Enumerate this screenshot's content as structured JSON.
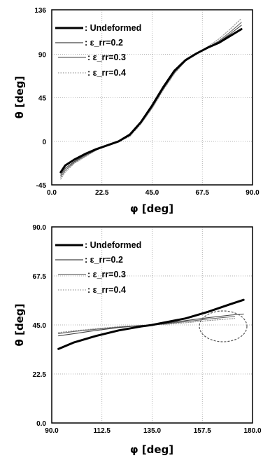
{
  "chart_data": [
    {
      "type": "line",
      "title": "",
      "xlabel": "φ [deg]",
      "ylabel": "θ [deg]",
      "xlim": [
        0,
        90
      ],
      "ylim": [
        -45,
        136
      ],
      "xticks": [
        "0.0",
        "22.5",
        "45.0",
        "67.5",
        "90.0"
      ],
      "xtick_values": [
        0,
        22.5,
        45,
        67.5,
        90
      ],
      "yticks": [
        "-45",
        "0",
        "45",
        "90",
        "136"
      ],
      "ytick_values": [
        -45,
        0,
        45,
        90,
        136
      ],
      "grid": true,
      "legend_position": "top-left",
      "series": [
        {
          "name": "Undeformed",
          "label_prefix": ": ",
          "style": "thick-solid",
          "color": "#000000",
          "x": [
            4,
            6,
            10,
            15,
            20,
            25,
            30,
            35,
            40,
            45,
            50,
            55,
            60,
            65,
            70,
            75,
            80,
            85
          ],
          "y": [
            -32,
            -25,
            -19,
            -13,
            -8,
            -4,
            0,
            7,
            20,
            37,
            56,
            73,
            84,
            91,
            97,
            102,
            109,
            116
          ]
        },
        {
          "name": "ε_rr=0.2",
          "label_prefix": ": ",
          "style": "thin-solid",
          "color": "#444444",
          "x": [
            4,
            6,
            10,
            15,
            20,
            25,
            30,
            35,
            40,
            45,
            50,
            55,
            60,
            65,
            70,
            75,
            80,
            85
          ],
          "y": [
            -35,
            -28,
            -21,
            -14,
            -8,
            -4,
            0,
            6,
            19,
            36,
            55,
            72,
            84,
            91,
            97,
            103,
            111,
            120
          ]
        },
        {
          "name": "ε_rr=0.3",
          "label_prefix": ": ",
          "style": "dark-gray-solid",
          "color": "#666666",
          "x": [
            4,
            6,
            10,
            15,
            20,
            25,
            30,
            35,
            40,
            45,
            50,
            55,
            60,
            65,
            70,
            75,
            80,
            85
          ],
          "y": [
            -37,
            -30,
            -22,
            -15,
            -9,
            -4,
            0,
            6,
            19,
            35,
            54,
            71,
            83,
            91,
            97,
            104,
            113,
            123
          ]
        },
        {
          "name": "ε_rr=0.4",
          "label_prefix": ": ",
          "style": "light-gray-dotted",
          "color": "#999999",
          "x": [
            4,
            6,
            10,
            15,
            20,
            25,
            30,
            35,
            40,
            45,
            50,
            55,
            60,
            65,
            70,
            75,
            80,
            85
          ],
          "y": [
            -39,
            -32,
            -23,
            -16,
            -9,
            -4,
            0,
            5,
            18,
            34,
            53,
            70,
            83,
            91,
            98,
            106,
            116,
            127
          ]
        }
      ]
    },
    {
      "type": "line",
      "title": "",
      "xlabel": "φ [deg]",
      "ylabel": "θ [deg]",
      "xlim": [
        90,
        180
      ],
      "ylim": [
        0,
        90
      ],
      "xticks": [
        "90.0",
        "112.5",
        "135.0",
        "157.5",
        "180.0"
      ],
      "xtick_values": [
        90,
        112.5,
        135,
        157.5,
        180
      ],
      "yticks": [
        "0.0",
        "22.5",
        "45.0",
        "67.5",
        "90.0"
      ],
      "ytick_values": [
        0,
        22.5,
        45,
        67.5,
        90
      ],
      "grid": true,
      "legend_position": "top-left",
      "annotation": "dashed ellipse around the curve ends near x 163–180",
      "series": [
        {
          "name": "Undeformed",
          "label_prefix": ": ",
          "style": "thick-solid",
          "color": "#000000",
          "x": [
            93,
            100,
            110,
            120,
            130,
            135,
            140,
            150,
            160,
            170,
            176
          ],
          "y": [
            34,
            37,
            40,
            42.5,
            44.3,
            45,
            46,
            48,
            51,
            54.5,
            56.5
          ]
        },
        {
          "name": "ε_rr=0.2",
          "label_prefix": ": ",
          "style": "thin-solid",
          "color": "#444444",
          "x": [
            93,
            100,
            110,
            120,
            130,
            135,
            140,
            150,
            160,
            170,
            176
          ],
          "y": [
            40,
            41,
            42.5,
            43.8,
            44.7,
            45,
            45.6,
            47,
            48.3,
            49.5,
            50
          ]
        },
        {
          "name": "ε_rr=0.3",
          "label_prefix": ": ",
          "style": "dark-gray-solid",
          "color": "#666666",
          "x": [
            93,
            100,
            110,
            120,
            130,
            135,
            140,
            150,
            160,
            170,
            172
          ],
          "y": [
            41,
            42,
            43,
            44,
            44.7,
            45,
            45.4,
            46.5,
            47.7,
            48.7,
            48.9
          ]
        },
        {
          "name": "ε_rr=0.4",
          "label_prefix": ": ",
          "style": "light-gray-dotted",
          "color": "#999999",
          "x": [
            93,
            100,
            110,
            120,
            130,
            135,
            140,
            150,
            160,
            170,
            172
          ],
          "y": [
            41.5,
            42.3,
            43.3,
            44.2,
            44.8,
            45,
            45.2,
            46,
            47,
            47.8,
            48
          ]
        }
      ]
    }
  ]
}
